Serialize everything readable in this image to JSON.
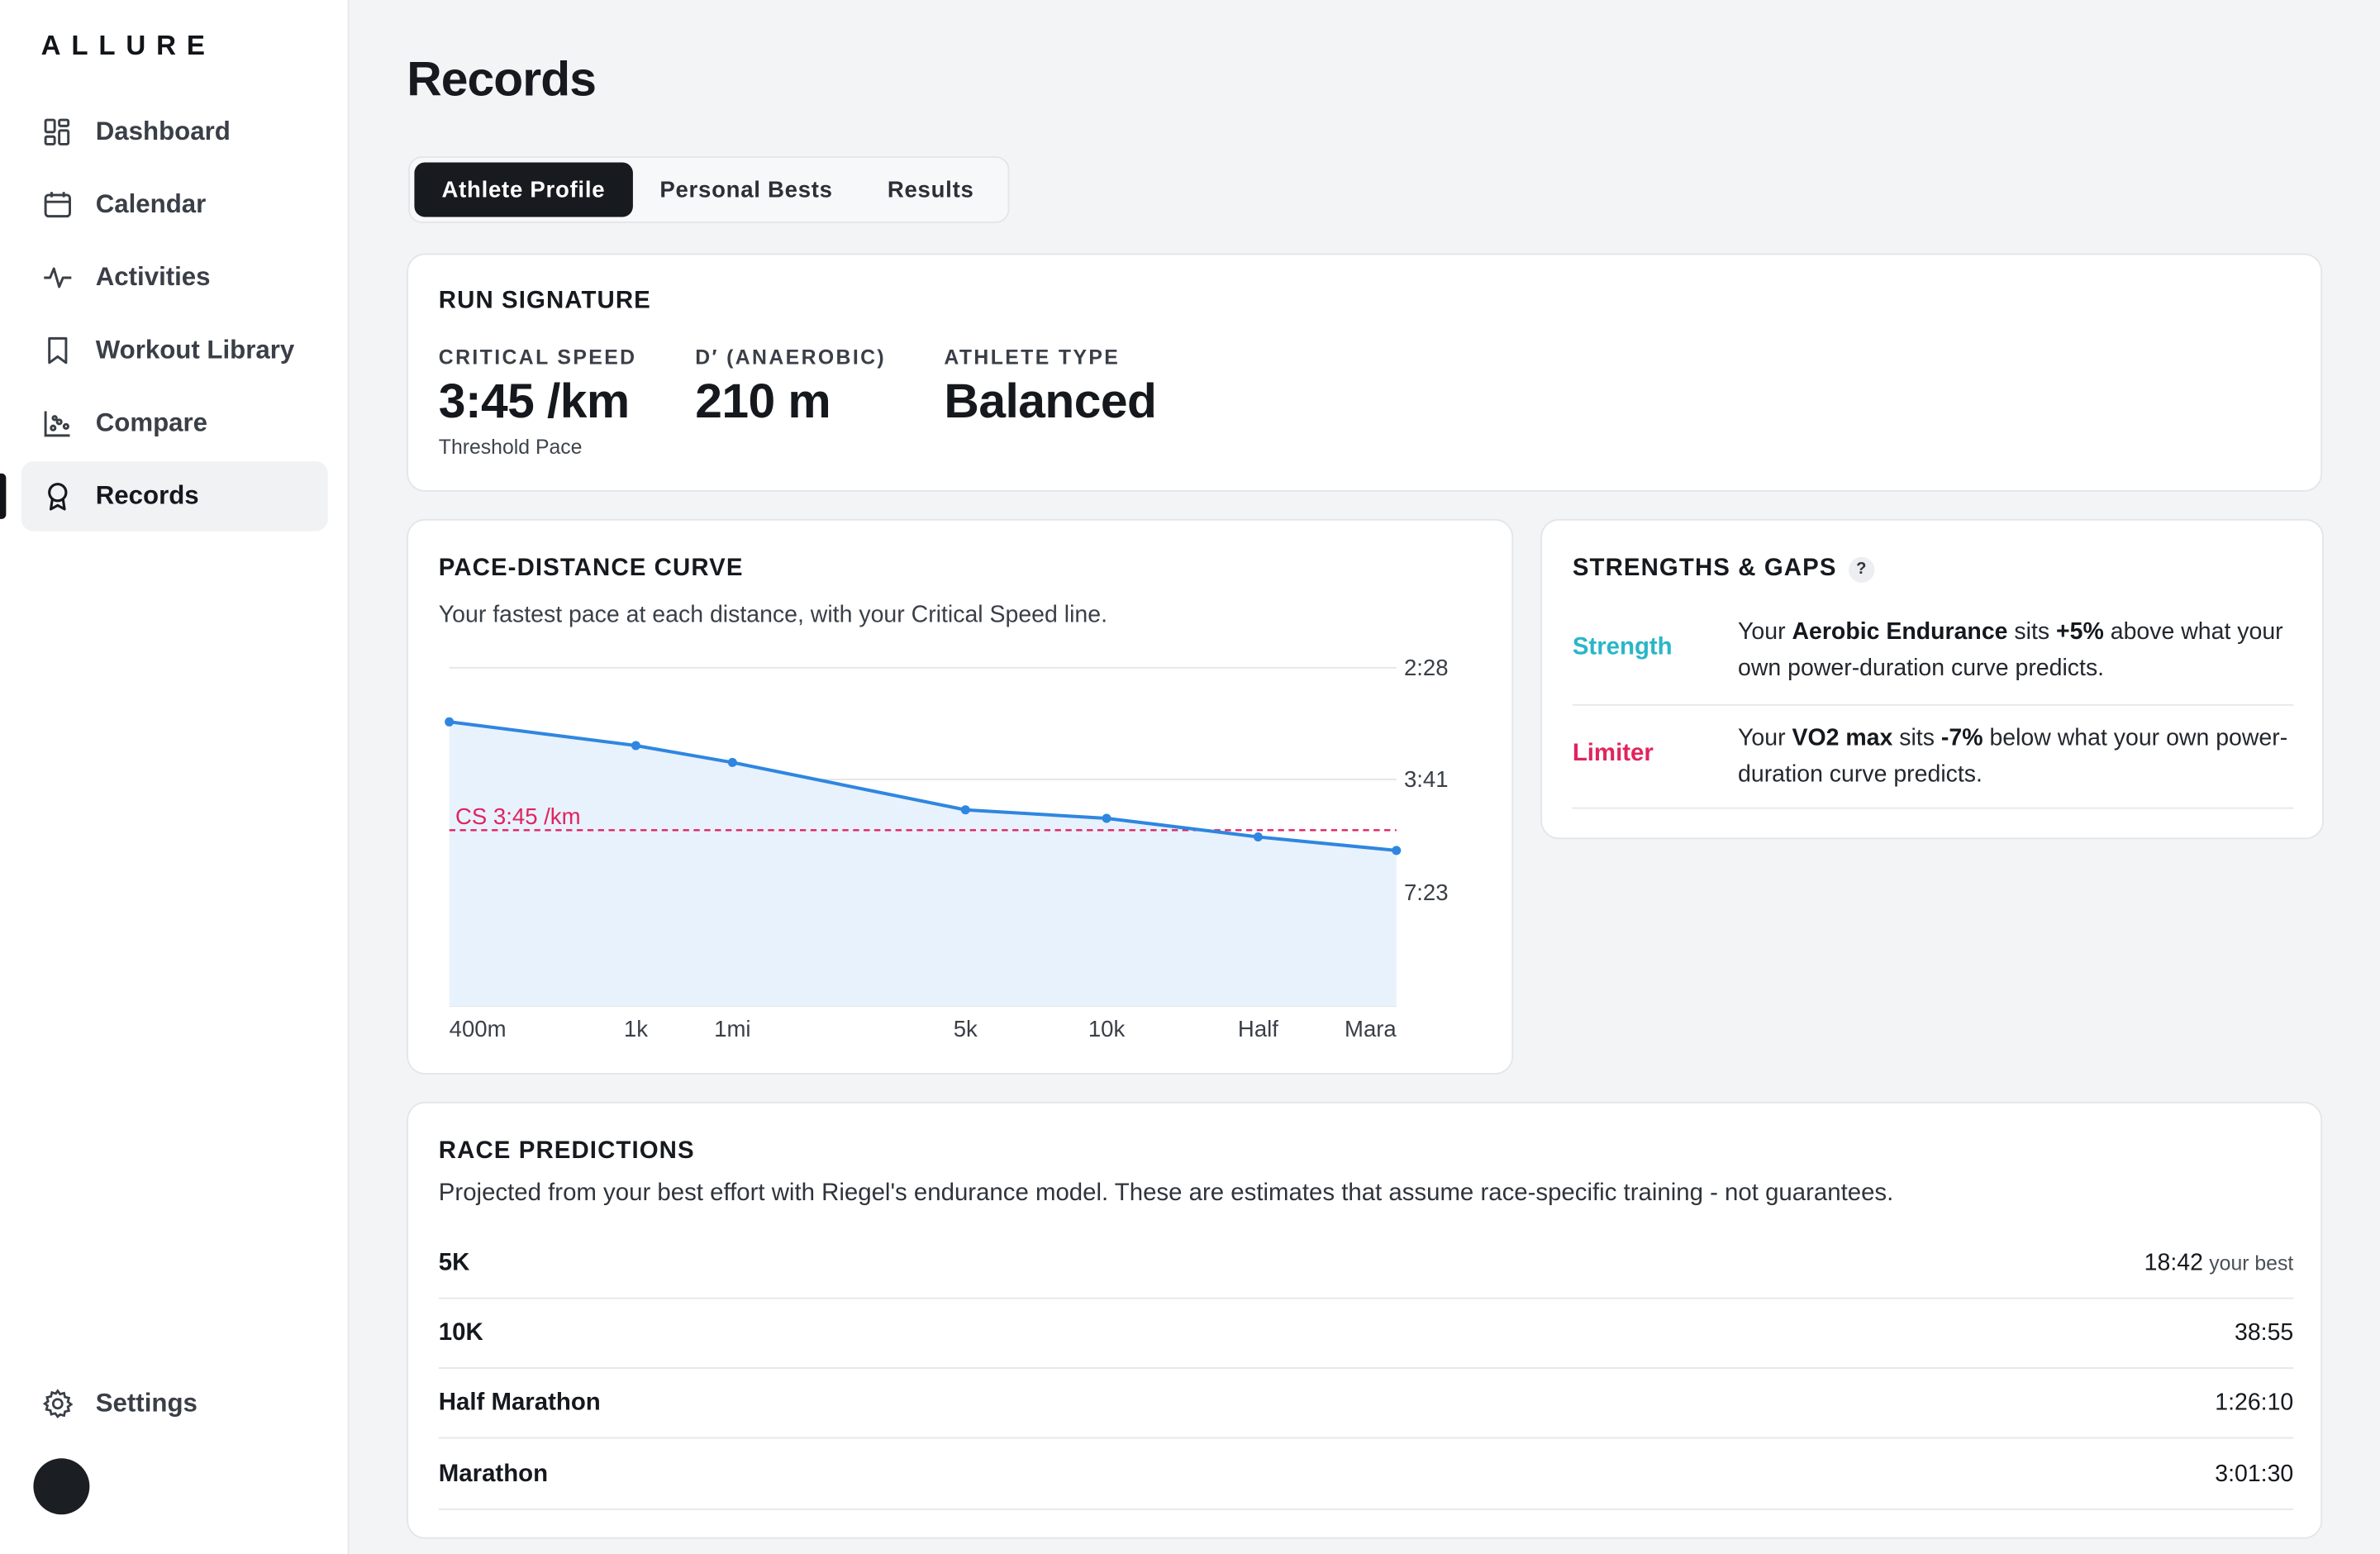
{
  "app": {
    "logo": "ALLURE"
  },
  "sidebar": {
    "items": [
      {
        "label": "Dashboard",
        "icon": "dashboard-icon"
      },
      {
        "label": "Calendar",
        "icon": "calendar-icon"
      },
      {
        "label": "Activities",
        "icon": "activity-icon"
      },
      {
        "label": "Workout Library",
        "icon": "bookmark-icon"
      },
      {
        "label": "Compare",
        "icon": "scatter-chart-icon"
      },
      {
        "label": "Records",
        "icon": "award-icon",
        "active": true
      }
    ],
    "settings_label": "Settings"
  },
  "page": {
    "title": "Records"
  },
  "tabs": [
    {
      "label": "Athlete Profile",
      "active": true
    },
    {
      "label": "Personal Bests"
    },
    {
      "label": "Results"
    }
  ],
  "run_signature": {
    "title": "RUN SIGNATURE",
    "critical_speed": {
      "label": "CRITICAL SPEED",
      "value": "3:45 /km",
      "sub": "Threshold Pace"
    },
    "d_prime": {
      "label": "D′ (ANAEROBIC)",
      "value": "210 m"
    },
    "athlete_type": {
      "label": "ATHLETE TYPE",
      "value": "Balanced"
    }
  },
  "pace_curve": {
    "title": "PACE-DISTANCE CURVE",
    "description": "Your fastest pace at each distance, with your Critical Speed line.",
    "cs_label": "CS 3:45 /km"
  },
  "chart_data": {
    "type": "area",
    "categories": [
      "400m",
      "1k",
      "1mi",
      "5k",
      "10k",
      "Half",
      "Mara"
    ],
    "y_tick_labels": [
      "2:28",
      "3:41",
      "7:23"
    ],
    "series": [
      {
        "values": [
          0.84,
          0.77,
          0.72,
          0.58,
          0.555,
          0.5,
          0.46
        ]
      }
    ],
    "reference_line": {
      "label": "CS 3:45 /km",
      "value": 0.52
    },
    "colors": {
      "line": "#2f86e0",
      "fill": "#e8f2fd",
      "reference": "#e0245e"
    },
    "grid": true
  },
  "strengths_gaps": {
    "title": "STRENGTHS & GAPS",
    "help": "?",
    "rows": [
      {
        "tag": "Strength",
        "color": "#29b6c8",
        "pre": "Your ",
        "metric": "Aerobic Endurance",
        "mid": " sits ",
        "delta": "+5%",
        "post": " above what your own power-duration curve predicts."
      },
      {
        "tag": "Limiter",
        "color": "#e0245e",
        "pre": "Your ",
        "metric": "VO2 max",
        "mid": " sits ",
        "delta": "-7%",
        "post": " below what your own power-duration curve predicts."
      }
    ]
  },
  "race_predictions": {
    "title": "RACE PREDICTIONS",
    "description": "Projected from your best effort with Riegel's endurance model. These are estimates that assume race-specific training - not guarantees.",
    "rows": [
      {
        "name": "5K",
        "time": "18:42",
        "note": "your best"
      },
      {
        "name": "10K",
        "time": "38:55"
      },
      {
        "name": "Half Marathon",
        "time": "1:26:10"
      },
      {
        "name": "Marathon",
        "time": "3:01:30"
      }
    ]
  }
}
